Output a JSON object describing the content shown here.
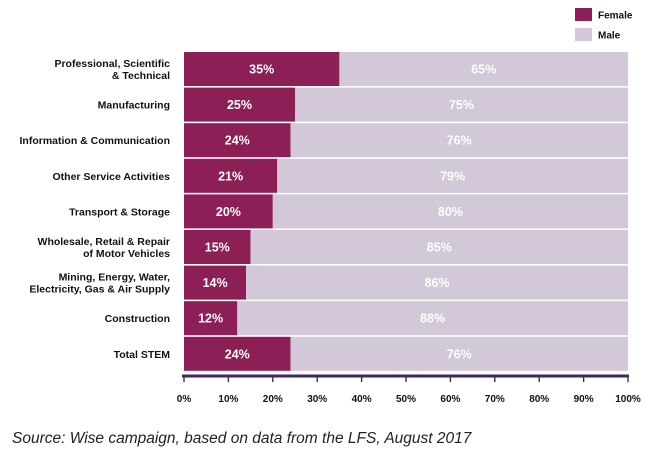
{
  "chart_data": {
    "type": "bar",
    "stacked": true,
    "orientation": "horizontal",
    "categories": [
      [
        "Professional, Scientific",
        "& Technical"
      ],
      [
        "Manufacturing"
      ],
      [
        "Information & Communication"
      ],
      [
        "Other Service Activities"
      ],
      [
        "Transport & Storage"
      ],
      [
        "Wholesale, Retail & Repair",
        "of Motor Vehicles"
      ],
      [
        "Mining, Energy, Water,",
        "Electricity, Gas & Air Supply"
      ],
      [
        "Construction"
      ],
      [
        "Total STEM"
      ]
    ],
    "series": [
      {
        "name": "Female",
        "color": "#8b1f56",
        "values": [
          35,
          25,
          24,
          21,
          20,
          15,
          14,
          12,
          24
        ],
        "labels": [
          "35%",
          "25%",
          "24%",
          "21%",
          "20%",
          "15%",
          "14%",
          "12%",
          "24%"
        ]
      },
      {
        "name": "Male",
        "color": "#d2c8d8",
        "values": [
          65,
          75,
          76,
          79,
          80,
          85,
          86,
          88,
          76
        ],
        "labels": [
          "65%",
          "75%",
          "76%",
          "79%",
          "80%",
          "85%",
          "86%",
          "88%",
          "76%"
        ]
      }
    ],
    "xlim": [
      0,
      100
    ],
    "x_ticks": [
      0,
      10,
      20,
      30,
      40,
      50,
      60,
      70,
      80,
      90,
      100
    ],
    "x_tick_labels": [
      "0%",
      "10%",
      "20%",
      "30%",
      "40%",
      "50%",
      "60%",
      "70%",
      "80%",
      "90%",
      "100%"
    ],
    "legend_position": "top-right",
    "axis_color": "#3d2a5a",
    "label_color": "#111111",
    "data_label_color": "#ffffff"
  },
  "source": "Source: Wise campaign, based on data from the LFS, August 2017"
}
